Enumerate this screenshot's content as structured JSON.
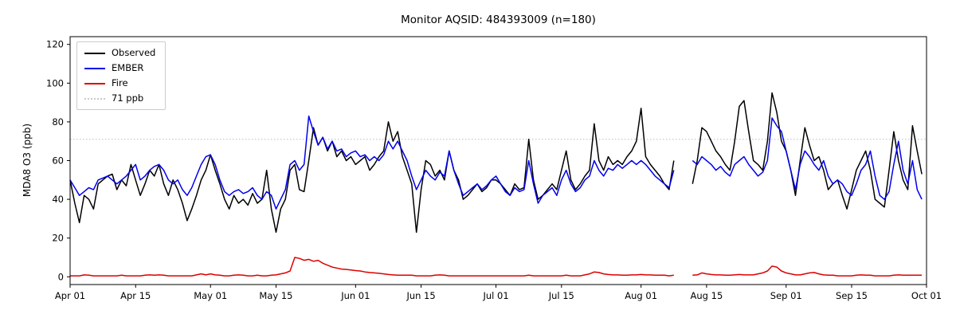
{
  "chart_data": {
    "type": "line",
    "title": "Monitor AQSID: 484393009 (n=180)",
    "ylabel": "MDA8 O3 (ppb)",
    "xlabel": "",
    "ylim": [
      -4,
      124
    ],
    "yticks": [
      0,
      20,
      40,
      60,
      80,
      100,
      120
    ],
    "grid": false,
    "legend_position": "upper left",
    "x_axis": {
      "unit": "daily",
      "start": "Apr 01",
      "end": "Oct 01",
      "n_days": 183,
      "tick_labels": [
        "Apr 01",
        "Apr 15",
        "May 01",
        "May 15",
        "Jun 01",
        "Jun 15",
        "Jul 01",
        "Jul 15",
        "Aug 01",
        "Aug 15",
        "Sep 01",
        "Sep 15",
        "Oct 01"
      ],
      "tick_day_offsets": [
        0,
        14,
        30,
        44,
        61,
        75,
        91,
        105,
        122,
        136,
        153,
        167,
        183
      ]
    },
    "ref_line": {
      "value": 71,
      "label": "71 ppb",
      "color": "#c9c9c9",
      "style": "dotted"
    },
    "series": [
      {
        "name": "Observed",
        "color": "#000000",
        "values": [
          50,
          38,
          28,
          42,
          40,
          35,
          48,
          50,
          52,
          53,
          45,
          50,
          47,
          58,
          50,
          42,
          48,
          55,
          52,
          58,
          48,
          42,
          50,
          45,
          38,
          29,
          35,
          42,
          50,
          55,
          63,
          55,
          48,
          40,
          35,
          42,
          38,
          40,
          37,
          43,
          38,
          40,
          55,
          35,
          23,
          35,
          40,
          55,
          58,
          45,
          44,
          60,
          77,
          68,
          72,
          65,
          70,
          62,
          65,
          60,
          62,
          58,
          60,
          62,
          55,
          58,
          62,
          65,
          80,
          70,
          75,
          62,
          55,
          48,
          23,
          45,
          60,
          58,
          52,
          55,
          50,
          65,
          55,
          50,
          40,
          42,
          45,
          48,
          44,
          46,
          50,
          50,
          48,
          45,
          42,
          48,
          45,
          46,
          71,
          50,
          40,
          42,
          45,
          48,
          45,
          55,
          65,
          50,
          45,
          48,
          52,
          55,
          79,
          60,
          55,
          62,
          58,
          60,
          58,
          62,
          65,
          70,
          87,
          62,
          58,
          55,
          52,
          48,
          45,
          60,
          null,
          null,
          null,
          48,
          60,
          77,
          75,
          70,
          65,
          62,
          58,
          55,
          70,
          88,
          91,
          75,
          60,
          58,
          55,
          70,
          95,
          85,
          70,
          65,
          55,
          42,
          60,
          77,
          68,
          60,
          62,
          55,
          45,
          48,
          50,
          42,
          35,
          45,
          55,
          60,
          65,
          55,
          40,
          38,
          36,
          55,
          75,
          60,
          50,
          45,
          78,
          65,
          53
        ]
      },
      {
        "name": "EMBER",
        "color": "#0000ee",
        "values": [
          50,
          46,
          42,
          44,
          46,
          45,
          50,
          51,
          52,
          50,
          48,
          50,
          52,
          55,
          58,
          50,
          52,
          55,
          57,
          58,
          55,
          50,
          48,
          50,
          45,
          42,
          46,
          52,
          58,
          62,
          63,
          58,
          50,
          44,
          42,
          44,
          45,
          43,
          44,
          46,
          42,
          40,
          44,
          42,
          35,
          40,
          45,
          58,
          60,
          55,
          58,
          83,
          75,
          68,
          72,
          66,
          70,
          65,
          66,
          62,
          64,
          65,
          62,
          63,
          60,
          62,
          60,
          63,
          70,
          66,
          70,
          65,
          60,
          52,
          45,
          50,
          55,
          52,
          50,
          54,
          52,
          65,
          55,
          48,
          42,
          44,
          46,
          48,
          45,
          47,
          50,
          52,
          48,
          44,
          42,
          46,
          44,
          45,
          60,
          48,
          38,
          42,
          44,
          46,
          42,
          50,
          55,
          48,
          44,
          46,
          50,
          52,
          60,
          55,
          52,
          56,
          55,
          58,
          56,
          58,
          60,
          58,
          60,
          58,
          55,
          52,
          50,
          48,
          46,
          55,
          null,
          null,
          null,
          60,
          58,
          62,
          60,
          58,
          55,
          57,
          54,
          52,
          58,
          60,
          62,
          58,
          55,
          52,
          54,
          60,
          82,
          78,
          75,
          65,
          55,
          45,
          58,
          65,
          62,
          58,
          55,
          60,
          52,
          48,
          50,
          48,
          44,
          42,
          48,
          55,
          58,
          65,
          52,
          42,
          40,
          44,
          58,
          70,
          55,
          48,
          60,
          45,
          40
        ]
      },
      {
        "name": "Fire",
        "color": "#dd0000",
        "values": [
          0.5,
          0.5,
          0.5,
          1,
          0.8,
          0.5,
          0.5,
          0.5,
          0.5,
          0.5,
          0.5,
          0.8,
          0.5,
          0.5,
          0.5,
          0.5,
          0.8,
          1,
          0.8,
          1,
          0.8,
          0.5,
          0.5,
          0.5,
          0.5,
          0.5,
          0.5,
          1,
          1.5,
          1,
          1.5,
          1,
          0.8,
          0.5,
          0.5,
          0.8,
          1,
          0.8,
          0.5,
          0.5,
          0.8,
          0.5,
          0.5,
          0.8,
          1,
          1.5,
          2,
          3,
          10,
          9.5,
          8.5,
          9,
          8,
          8.5,
          7,
          6,
          5,
          4.5,
          4,
          3.8,
          3.5,
          3.2,
          3,
          2.5,
          2.2,
          2,
          1.8,
          1.5,
          1.2,
          1,
          0.8,
          0.8,
          0.8,
          0.8,
          0.5,
          0.5,
          0.5,
          0.5,
          0.8,
          1,
          0.8,
          0.5,
          0.5,
          0.5,
          0.5,
          0.5,
          0.5,
          0.5,
          0.5,
          0.5,
          0.5,
          0.5,
          0.5,
          0.5,
          0.5,
          0.5,
          0.5,
          0.5,
          0.8,
          0.5,
          0.5,
          0.5,
          0.5,
          0.5,
          0.5,
          0.5,
          0.8,
          0.5,
          0.5,
          0.5,
          1,
          1.5,
          2.5,
          2.2,
          1.5,
          1.2,
          1,
          1,
          0.8,
          0.8,
          1,
          1,
          1.2,
          1,
          1,
          0.8,
          0.8,
          0.8,
          0.5,
          0.8,
          null,
          null,
          null,
          0.8,
          1,
          2,
          1.5,
          1.2,
          1,
          1,
          0.8,
          0.8,
          1,
          1.2,
          1,
          1,
          1,
          1.5,
          2,
          3,
          5.5,
          5,
          3,
          2,
          1.5,
          1,
          1,
          1.5,
          2,
          2.2,
          1.5,
          1,
          0.8,
          0.8,
          0.5,
          0.5,
          0.5,
          0.5,
          0.8,
          1,
          0.8,
          0.8,
          0.5,
          0.5,
          0.5,
          0.5,
          0.8,
          1,
          0.8,
          0.8,
          0.8,
          0.8,
          0.8
        ]
      }
    ]
  }
}
